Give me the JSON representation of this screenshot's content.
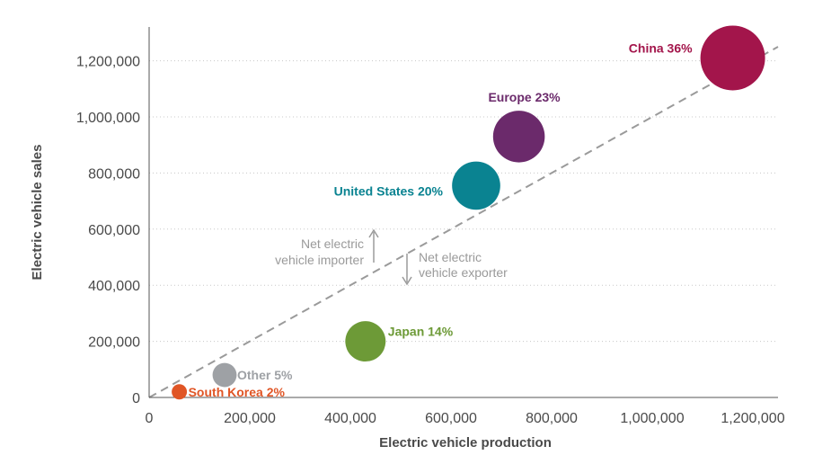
{
  "chart_data": {
    "type": "scatter",
    "xlabel": "Electric vehicle production",
    "ylabel": "Electric vehicle sales",
    "xlim": [
      0,
      1250000
    ],
    "ylim": [
      0,
      1250000
    ],
    "x_ticks": [
      {
        "value": 0,
        "label": "0"
      },
      {
        "value": 200000,
        "label": "200,000"
      },
      {
        "value": 400000,
        "label": "400,000"
      },
      {
        "value": 600000,
        "label": "600,000"
      },
      {
        "value": 800000,
        "label": "800,000"
      },
      {
        "value": 1000000,
        "label": "1,000,000"
      },
      {
        "value": 1200000,
        "label": "1,200,000"
      }
    ],
    "y_ticks": [
      {
        "value": 0,
        "label": "0"
      },
      {
        "value": 200000,
        "label": "200,000"
      },
      {
        "value": 400000,
        "label": "400,000"
      },
      {
        "value": 600000,
        "label": "600,000"
      },
      {
        "value": 800000,
        "label": "800,000"
      },
      {
        "value": 1000000,
        "label": "1,000,000"
      },
      {
        "value": 1200000,
        "label": "1,200,000"
      }
    ],
    "grid": "horizontal dotted",
    "points": [
      {
        "label": "China 36%",
        "share": 36,
        "x": 1160000,
        "y": 1210000,
        "color": "#a3154b"
      },
      {
        "label": "Europe 23%",
        "share": 23,
        "x": 735000,
        "y": 930000,
        "color": "#6b2a6b"
      },
      {
        "label": "United States 20%",
        "share": 20,
        "x": 650000,
        "y": 755000,
        "color": "#0a8391"
      },
      {
        "label": "Japan 14%",
        "share": 14,
        "x": 430000,
        "y": 200000,
        "color": "#6d9a37"
      },
      {
        "label": "Other 5%",
        "share": 5,
        "x": 150000,
        "y": 80000,
        "color": "#9ea1a5"
      },
      {
        "label": "South Korea 2%",
        "share": 2,
        "x": 60000,
        "y": 20000,
        "color": "#e05525"
      }
    ],
    "reference_line": {
      "from": [
        0,
        0
      ],
      "to": [
        1250000,
        1250000
      ],
      "style": "dashed",
      "color": "#9a9a9a"
    },
    "annotations": [
      {
        "lines": [
          "Net electric",
          "vehicle importer"
        ],
        "arrow": "up"
      },
      {
        "lines": [
          "Net electric",
          "vehicle exporter"
        ],
        "arrow": "down"
      }
    ]
  }
}
